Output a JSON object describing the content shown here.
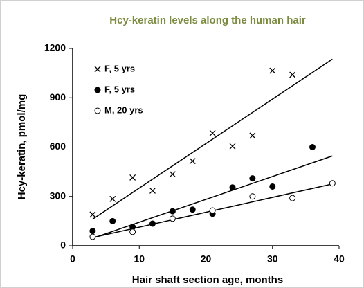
{
  "chart_data": {
    "type": "scatter",
    "title": "Hcy-keratin levels along the human hair",
    "xlabel": "Hair shaft section age, months",
    "ylabel": "Hcy-keratin, pmol/mg",
    "xlim": [
      0,
      40
    ],
    "xticks": [
      0,
      10,
      20,
      30,
      40
    ],
    "ylim": [
      0,
      1200
    ],
    "yticks": [
      0,
      300,
      600,
      900,
      1200
    ],
    "legend": "upper left",
    "trendline": "linear",
    "series": [
      {
        "name": "F, 5 yrs",
        "color": "#000000",
        "marker": "x",
        "x": [
          3,
          6,
          9,
          12,
          15,
          18,
          21,
          24,
          27,
          30,
          33
        ],
        "values": [
          190,
          285,
          415,
          335,
          435,
          515,
          685,
          605,
          670,
          1065,
          1040
        ]
      },
      {
        "name": "F, 5 yrs",
        "color": "#000000",
        "marker": "filled-circle",
        "x": [
          3,
          6,
          9,
          12,
          15,
          18,
          21,
          24,
          27,
          30,
          36
        ],
        "values": [
          90,
          150,
          115,
          135,
          210,
          220,
          195,
          355,
          410,
          360,
          600
        ]
      },
      {
        "name": "M, 20 yrs",
        "color": "#000000",
        "marker": "open-circle",
        "x": [
          3,
          9,
          15,
          21,
          27,
          33,
          39
        ],
        "values": [
          55,
          85,
          165,
          215,
          300,
          290,
          380
        ]
      }
    ]
  }
}
